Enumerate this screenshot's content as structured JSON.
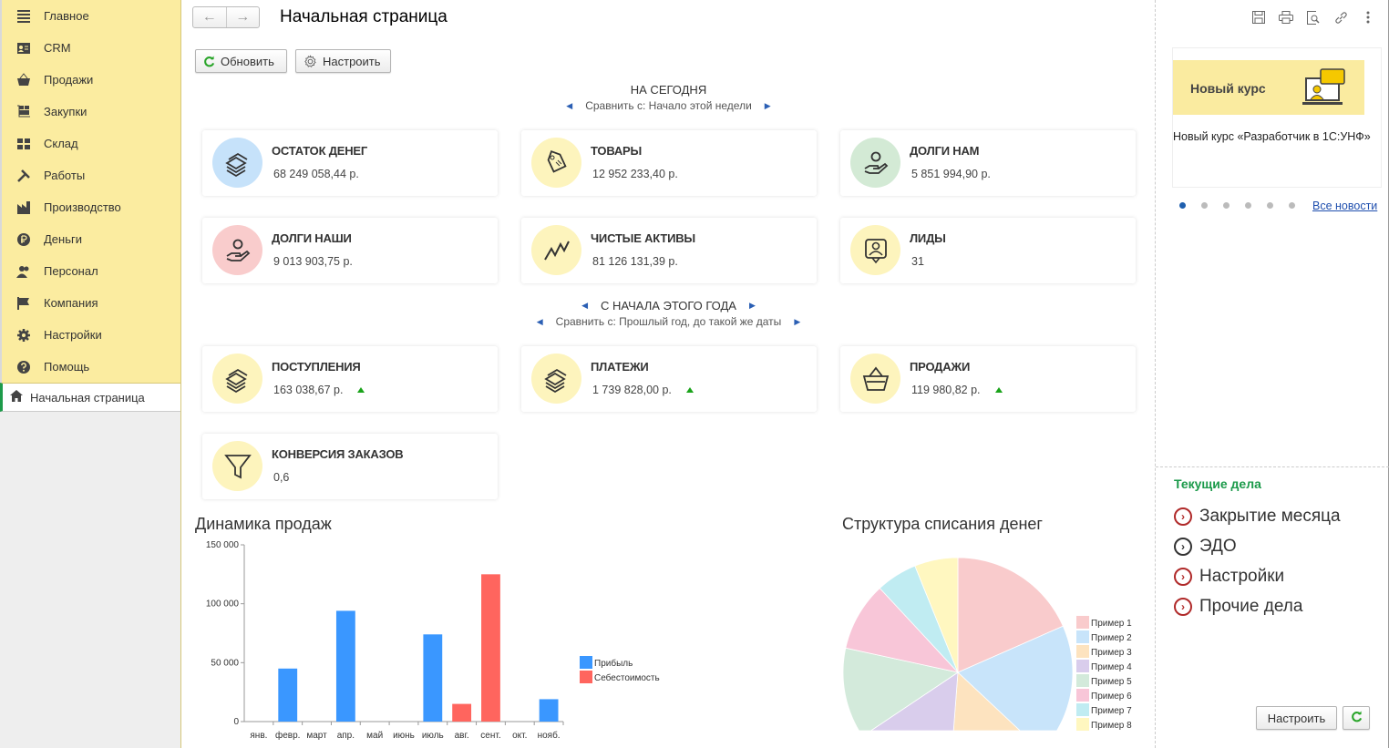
{
  "sidebar": {
    "items": [
      {
        "label": "Главное",
        "icon": "menu-icon"
      },
      {
        "label": "CRM",
        "icon": "contact-card-icon"
      },
      {
        "label": "Продажи",
        "icon": "basket-icon"
      },
      {
        "label": "Закупки",
        "icon": "cart-icon"
      },
      {
        "label": "Склад",
        "icon": "warehouse-icon"
      },
      {
        "label": "Работы",
        "icon": "tools-icon"
      },
      {
        "label": "Производство",
        "icon": "factory-icon"
      },
      {
        "label": "Деньги",
        "icon": "money-icon"
      },
      {
        "label": "Персонал",
        "icon": "people-icon"
      },
      {
        "label": "Компания",
        "icon": "flag-icon"
      },
      {
        "label": "Настройки",
        "icon": "gear-icon"
      },
      {
        "label": "Помощь",
        "icon": "help-icon"
      }
    ],
    "active": {
      "label": "Начальная страница",
      "icon": "home-icon"
    }
  },
  "header": {
    "title": "Начальная страница"
  },
  "toolbar": {
    "refresh": "Обновить",
    "configure": "Настроить"
  },
  "today": {
    "heading": "НА СЕГОДНЯ",
    "compare": "Сравнить с: Начало этой недели",
    "cards": [
      {
        "title": "ОСТАТОК ДЕНЕГ",
        "value": "68 249 058,44 р.",
        "color": "#c6e2fa"
      },
      {
        "title": "ТОВАРЫ",
        "value": "12 952 233,40 р.",
        "color": "#fdf4bd"
      },
      {
        "title": "ДОЛГИ НАМ",
        "value": "5 851 994,90 р.",
        "color": "#d3ead5"
      },
      {
        "title": "ДОЛГИ НАШИ",
        "value": "9 013 903,75 р.",
        "color": "#f9cccc"
      },
      {
        "title": "ЧИСТЫЕ АКТИВЫ",
        "value": "81 126 131,39 р.",
        "color": "#fdf4bd"
      },
      {
        "title": "ЛИДЫ",
        "value": "31",
        "color": "#fdf4bd"
      }
    ]
  },
  "year": {
    "heading": "С НАЧАЛА ЭТОГО ГОДА",
    "compare": "Сравнить с: Прошлый год, до такой же даты",
    "cards": [
      {
        "title": "ПОСТУПЛЕНИЯ",
        "value": "163 038,67 р.",
        "trend": "up"
      },
      {
        "title": "ПЛАТЕЖИ",
        "value": "1 739 828,00 р.",
        "trend": "up"
      },
      {
        "title": "ПРОДАЖИ",
        "value": "119 980,82 р.",
        "trend": "up"
      },
      {
        "title": "КОНВЕРСИЯ ЗАКАЗОВ",
        "value": "0,6"
      }
    ]
  },
  "chart_data": [
    {
      "type": "bar",
      "title": "Динамика продаж",
      "categories": [
        "янв.",
        "февр.",
        "март",
        "апр.",
        "май",
        "июнь",
        "июль",
        "авг.",
        "сент.",
        "окт.",
        "нояб."
      ],
      "series": [
        {
          "name": "Прибыль",
          "color": "#3a97ff",
          "values": [
            0,
            45000,
            0,
            94000,
            0,
            0,
            74000,
            0,
            0,
            0,
            19000
          ]
        },
        {
          "name": "Себестоимость",
          "color": "#ff655e",
          "values": [
            0,
            0,
            0,
            0,
            0,
            0,
            0,
            15000,
            125000,
            0,
            0
          ]
        }
      ],
      "yticks": [
        "0",
        "50 000",
        "100 000",
        "150 000"
      ],
      "ylim": [
        0,
        150000
      ],
      "legend": "right"
    },
    {
      "type": "pie",
      "title": "Структура списания денег",
      "labels": [
        "Пример 1",
        "Пример 2",
        "Пример 3",
        "Пример 4",
        "Пример 5",
        "Пример 6",
        "Пример 7",
        "Пример 8"
      ],
      "values": [
        18.4,
        18.6,
        14.2,
        14.4,
        12.8,
        9.7,
        5.8,
        6.1
      ],
      "colors": [
        "#f9cbcc",
        "#c8e4fa",
        "#fde3bf",
        "#d9cdec",
        "#d3eadb",
        "#f8c6d8",
        "#c0ecf2",
        "#fff7c0"
      ],
      "legend": "right"
    }
  ],
  "news": {
    "banner": "Новый курс",
    "text": "Новый курс «Разработчик в 1С:УНФ»",
    "all_link": "Все новости",
    "pages": 6,
    "active_page": 1
  },
  "tasks": {
    "heading": "Текущие дела",
    "items": [
      {
        "label": "Закрытие месяца",
        "color": "#b02a2a"
      },
      {
        "label": "ЭДО",
        "color": "#333333"
      },
      {
        "label": "Настройки",
        "color": "#b02a2a"
      },
      {
        "label": "Прочие дела",
        "color": "#b02a2a"
      }
    ],
    "configure": "Настроить"
  }
}
